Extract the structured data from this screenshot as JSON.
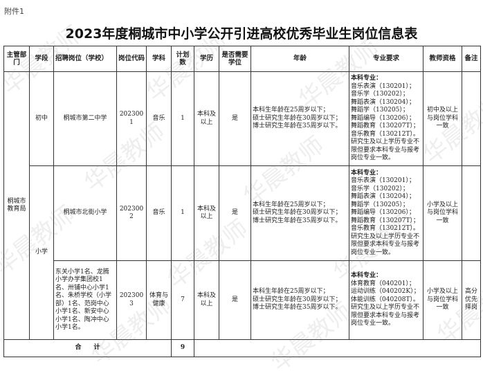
{
  "attachment_label": "附件1",
  "title": "2023年度桐城市中小学公开引进高校优秀毕业生岗位信息表",
  "watermark": "华晨教师",
  "headers": [
    "主管部门",
    "学段",
    "招聘岗位（学校）",
    "岗位代码",
    "学科",
    "计划数",
    "学历",
    "是否需要学位",
    "年龄",
    "专业要求",
    "教师资格",
    "备注"
  ],
  "department": "桐城市教育局",
  "stages": {
    "junior": "初中",
    "primary": "小学"
  },
  "rows": [
    {
      "school": "桐城市第二中学",
      "code": "2023001",
      "subject": "音乐",
      "count": "1",
      "education": "本科及以上",
      "degree": "是",
      "age": [
        "本科生年龄在25周岁以下；",
        "硕士研究生年龄在30周岁以下；",
        "博士研究生年龄在35周岁以下。"
      ],
      "major_head": "本科专业：",
      "majors": [
        "音乐表演（130201）；",
        "音乐学（130202）；",
        "舞蹈表演（130204）；",
        "舞蹈学（130205）；",
        "舞蹈编导（130206）；",
        "舞蹈教育（130207T）；",
        "音乐教育（130212T）。",
        "研究生及以上学历专业不限但要求本科专业与报考岗位专业一致。"
      ],
      "qualification": "初中及以上与岗位学科一致",
      "note": ""
    },
    {
      "school": "桐城市北街小学",
      "code": "2023002",
      "subject": "音乐",
      "count": "1",
      "education": "本科及以上",
      "degree": "是",
      "age": [
        "本科生年龄在25周岁以下；",
        "硕士研究生年龄在30周岁以下；",
        "博士研究生年龄在35周岁以下。"
      ],
      "major_head": "本科专业：",
      "majors": [
        "音乐表演（130201）；",
        "音乐学（130202）；",
        "舞蹈表演（130204）；",
        "舞蹈学（130205）；",
        "舞蹈编导（130206）；",
        "舞蹈教育（130207T）；",
        "音乐教育（130212T）。",
        "研究生及以上学历专业不限但要求本科专业与报考岗位专业一致。"
      ],
      "qualification": "小学及以上与岗位学科一致",
      "note": ""
    },
    {
      "school": "东关小学1名、龙腾小学办学集团校1名、卅铺中心小学1名、朱桥学校（小学部）1名、范岗中心小学1名、新安中心小学1名、陶冲中心小学1名。",
      "code": "2023003",
      "subject": "体育与健康",
      "count": "7",
      "education": "本科及以上",
      "degree": "是",
      "age": [
        "本科生年龄在25周岁以下；",
        "硕士研究生年龄在30周岁以下；",
        "博士研究生年龄在35周岁以下。"
      ],
      "major_head": "本科专业：",
      "majors": [
        "体育教育（040201）；",
        "运动训练（040202K）；",
        "体能训练（040208T）。",
        "研究生及以上学历专业不限但要求本科专业与报考岗位专业一致。"
      ],
      "qualification": "小学及以上与岗位学科一致",
      "note": "高分优先择岗"
    }
  ],
  "total": {
    "label": "合　　计",
    "count": "9"
  }
}
